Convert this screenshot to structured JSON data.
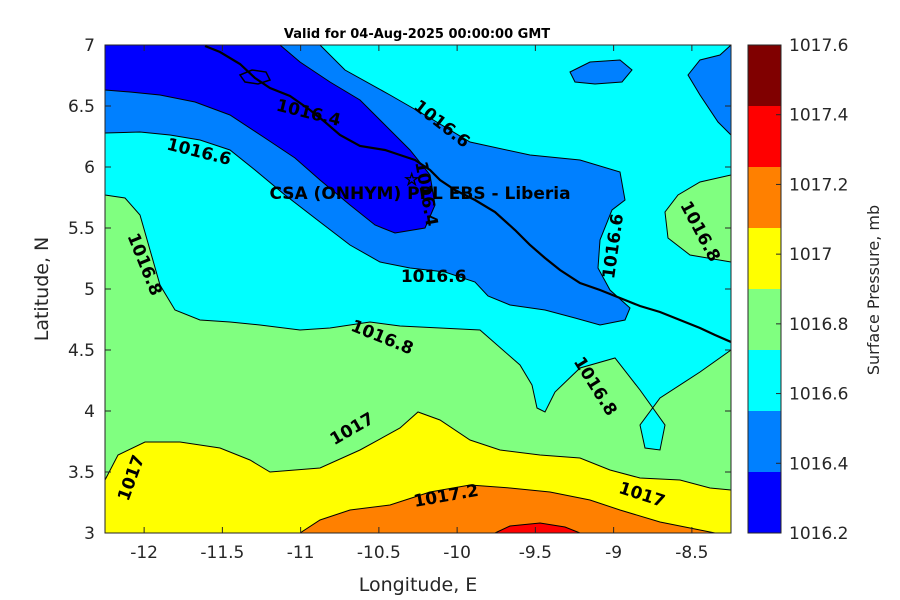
{
  "title": "Valid for 04-Aug-2025 00:00:00 GMT",
  "site_label": "CSA (ONHYM) PPL EBS  - Liberia",
  "site_marker": {
    "lon": -10.29,
    "lat": 5.92,
    "symbol": "☆"
  },
  "chart_data": {
    "type": "contour",
    "xlabel": "Longitude, E",
    "ylabel": "Latitude, N",
    "xlim": [
      -12.25,
      -8.25
    ],
    "ylim": [
      3,
      7
    ],
    "x_ticks": [
      "-12",
      "-11.5",
      "-11",
      "-10.5",
      "-10",
      "-9.5",
      "-9",
      "-8.5"
    ],
    "y_ticks": [
      "3",
      "3.5",
      "4",
      "4.5",
      "5",
      "5.5",
      "6",
      "6.5",
      "7"
    ],
    "colorbar": {
      "label": "Surface Pressure, mb",
      "ticks": [
        "1016.2",
        "1016.4",
        "1016.6",
        "1016.8",
        "1017",
        "1017.2",
        "1017.4",
        "1017.6"
      ],
      "levels": [
        1016.2,
        1016.4,
        1016.6,
        1016.8,
        1017.0,
        1017.2,
        1017.4,
        1017.6
      ],
      "colors": [
        "#0000ff",
        "#0080ff",
        "#00ffff",
        "#80ff80",
        "#ffff00",
        "#ff8000",
        "#ff0000",
        "#800000"
      ]
    },
    "contour_labels": [
      {
        "text": "1016.4",
        "lon": -10.95,
        "lat": 6.44,
        "angle": 14
      },
      {
        "text": "1016.6",
        "lon": -10.1,
        "lat": 6.35,
        "angle": 38
      },
      {
        "text": "1016.6",
        "lon": -11.65,
        "lat": 6.12,
        "angle": 14
      },
      {
        "text": "1016.4",
        "lon": -10.2,
        "lat": 5.78,
        "angle": 80
      },
      {
        "text": "1016.6",
        "lon": -10.15,
        "lat": 5.1,
        "angle": 0
      },
      {
        "text": "1016.6",
        "lon": -9.0,
        "lat": 5.35,
        "angle": -82
      },
      {
        "text": "1016.8",
        "lon": -8.45,
        "lat": 5.47,
        "angle": 62
      },
      {
        "text": "1016.8",
        "lon": -12.0,
        "lat": 5.2,
        "angle": 68
      },
      {
        "text": "1016.8",
        "lon": -10.48,
        "lat": 4.6,
        "angle": 22
      },
      {
        "text": "1016.8",
        "lon": -9.12,
        "lat": 4.2,
        "angle": 58
      },
      {
        "text": "1017",
        "lon": -10.67,
        "lat": 3.85,
        "angle": -30
      },
      {
        "text": "1017",
        "lon": -12.08,
        "lat": 3.45,
        "angle": -70
      },
      {
        "text": "1017.2",
        "lon": -10.07,
        "lat": 3.3,
        "angle": -10
      },
      {
        "text": "1017",
        "lon": -8.82,
        "lat": 3.31,
        "angle": 18
      }
    ]
  }
}
